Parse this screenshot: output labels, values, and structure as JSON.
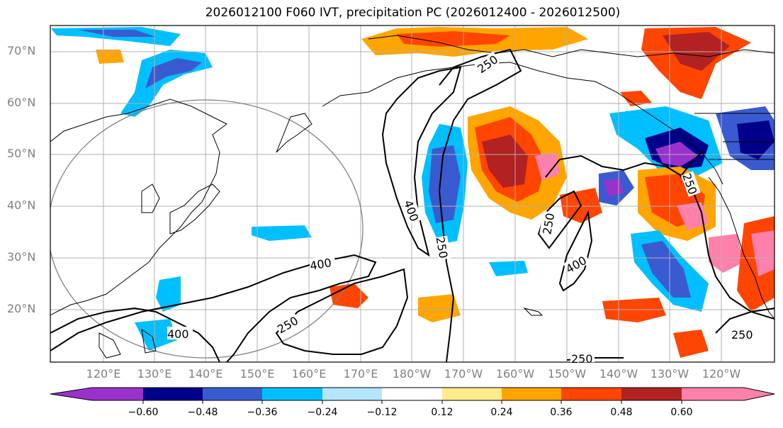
{
  "title": "2026012100 F060 IVT, precipitation PC (2026012400 - 2026012500)",
  "map": {
    "lat_labels": [
      "70°N",
      "60°N",
      "50°N",
      "40°N",
      "30°N",
      "20°N"
    ],
    "lon_labels": [
      "120°E",
      "130°E",
      "140°E",
      "150°E",
      "160°E",
      "170°E",
      "180°W",
      "170°W",
      "160°W",
      "150°W",
      "140°W",
      "130°W",
      "120°W"
    ],
    "ivt_contour_labels": [
      "250",
      "250",
      "250",
      "250",
      "250",
      "250",
      "250",
      "400",
      "400",
      "400",
      "400"
    ]
  },
  "colorbar": {
    "colors": [
      "#9932cc",
      "#00008b",
      "#3a5bd0",
      "#00bfff",
      "#b3e5fc",
      "#ffffff",
      "#ffeb8a",
      "#ffa500",
      "#ff4500",
      "#b22222",
      "#ff80ab"
    ],
    "tick_labels": [
      "−0.60",
      "−0.48",
      "−0.36",
      "−0.24",
      "−0.12",
      "0.12",
      "0.24",
      "0.36",
      "0.48",
      "0.60"
    ]
  }
}
